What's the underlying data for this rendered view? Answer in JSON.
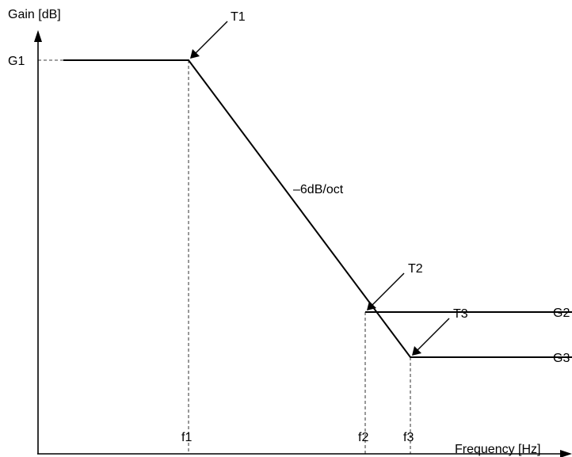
{
  "axes": {
    "y_label": "Gain [dB]",
    "x_label": "Frequency [Hz]"
  },
  "levels": {
    "g1": "G1",
    "g2": "G2",
    "g3": "G3"
  },
  "frequencies": {
    "f1": "f1",
    "f2": "f2",
    "f3": "f3"
  },
  "transitions": {
    "t1": "T1",
    "t2": "T2",
    "t3": "T3"
  },
  "slope_label": "–6dB/oct"
}
